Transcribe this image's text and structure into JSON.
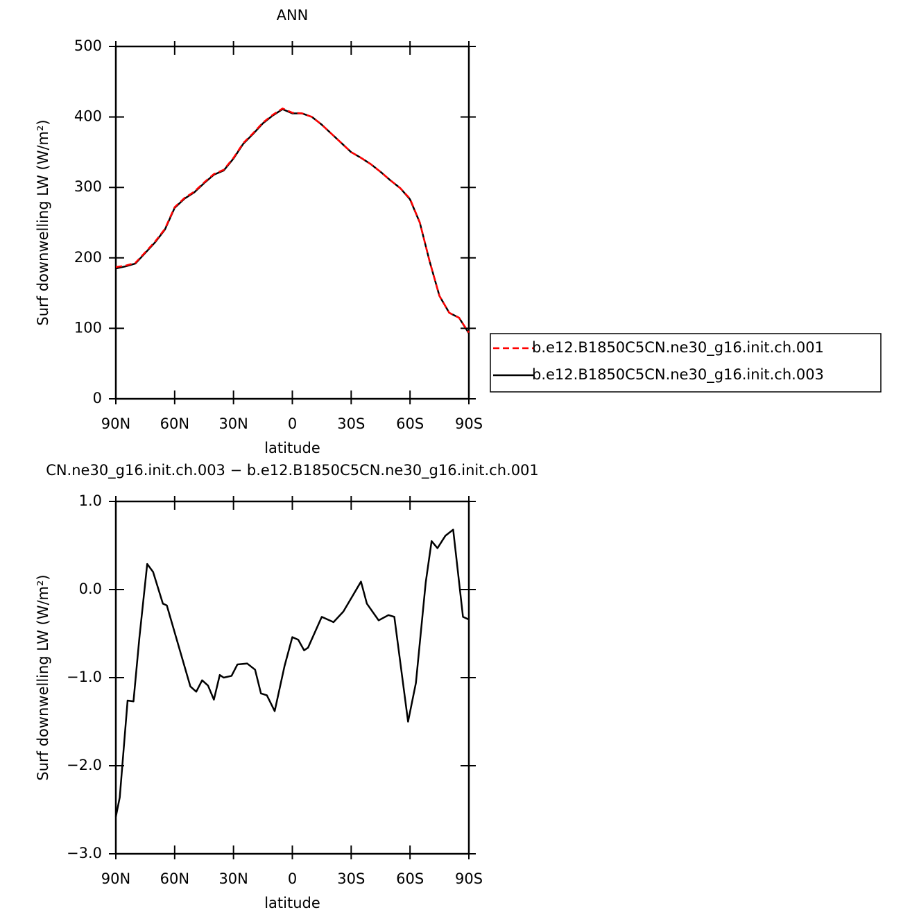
{
  "chart_data": [
    {
      "type": "line",
      "title": "ANN",
      "xlabel": "latitude",
      "ylabel": "Surf downwelling LW (W/m²)",
      "x": [
        90,
        85,
        80,
        75,
        70,
        65,
        60,
        55,
        50,
        45,
        40,
        35,
        30,
        25,
        20,
        15,
        10,
        5,
        0,
        -5,
        -10,
        -15,
        -20,
        -25,
        -30,
        -35,
        -40,
        -45,
        -50,
        -55,
        -60,
        -65,
        -70,
        -75,
        -80,
        -85,
        -90
      ],
      "series": [
        {
          "name": "b.e12.B1850C5CN.ne30_g16.init.ch.001",
          "color": "#ff0000",
          "dashed": true,
          "values": [
            187,
            189,
            193,
            208,
            223,
            241,
            272,
            285,
            294,
            307,
            319,
            325,
            342,
            363,
            377,
            392,
            403,
            412,
            406,
            405,
            400,
            389,
            376,
            363,
            350,
            342,
            333,
            322,
            310,
            299,
            284,
            250,
            195,
            146,
            122,
            115,
            94
          ]
        },
        {
          "name": "b.e12.B1850C5CN.ne30_g16.init.ch.003",
          "color": "#000000",
          "dashed": false,
          "values": [
            185,
            188,
            192,
            207,
            222,
            240,
            271,
            284,
            293,
            306,
            318,
            324,
            341,
            362,
            376,
            391,
            402,
            411,
            405,
            405,
            400,
            389,
            376,
            363,
            350,
            342,
            333,
            322,
            310,
            299,
            283,
            250,
            195,
            146,
            122,
            115,
            93
          ]
        }
      ],
      "xlim": [
        90,
        -90
      ],
      "xticks": [
        {
          "value": 90,
          "label": "90N"
        },
        {
          "value": 60,
          "label": "60N"
        },
        {
          "value": 30,
          "label": "30N"
        },
        0,
        {
          "value": -30,
          "label": "30S"
        },
        {
          "value": -60,
          "label": "60S"
        },
        {
          "value": -90,
          "label": "90S"
        }
      ],
      "ylim": [
        0,
        500
      ],
      "yticks": [
        0,
        100,
        200,
        300,
        400,
        500
      ],
      "legend": "right"
    },
    {
      "type": "line",
      "title": "CN.ne30_g16.init.ch.003 − b.e12.B1850C5CN.ne30_g16.init.ch.001",
      "xlabel": "latitude",
      "ylabel": "Surf downwelling LW (W/m²)",
      "x": [
        90,
        88,
        84,
        81,
        78,
        74,
        71,
        66,
        64,
        55,
        52,
        49,
        46,
        43,
        40,
        37,
        35,
        31,
        28,
        23,
        19,
        16,
        13,
        9,
        4,
        0,
        -3,
        -6,
        -8,
        -15,
        -21,
        -26,
        -35,
        -38,
        -44,
        -49,
        -52,
        -59,
        -63,
        -68,
        -71,
        -74,
        -78,
        -82,
        -87,
        -90
      ],
      "series": [
        {
          "name": null,
          "color": "#000000",
          "dashed": false,
          "values": [
            -2.58,
            -2.36,
            -1.26,
            -1.27,
            -0.55,
            0.29,
            0.2,
            -0.16,
            -0.18,
            -0.87,
            -1.1,
            -1.16,
            -1.03,
            -1.09,
            -1.25,
            -0.97,
            -1.0,
            -0.98,
            -0.85,
            -0.84,
            -0.91,
            -1.18,
            -1.2,
            -1.38,
            -0.87,
            -0.54,
            -0.57,
            -0.69,
            -0.66,
            -0.31,
            -0.37,
            -0.25,
            0.09,
            -0.16,
            -0.35,
            -0.29,
            -0.31,
            -1.5,
            -1.06,
            0.08,
            0.55,
            0.47,
            0.61,
            0.68,
            -0.31,
            -0.34
          ]
        }
      ],
      "xlim": [
        90,
        -90
      ],
      "xticks": [
        {
          "value": 90,
          "label": "90N"
        },
        {
          "value": 60,
          "label": "60N"
        },
        {
          "value": 30,
          "label": "30N"
        },
        0,
        {
          "value": -30,
          "label": "30S"
        },
        {
          "value": -60,
          "label": "60S"
        },
        {
          "value": -90,
          "label": "90S"
        }
      ],
      "ylim": [
        -3,
        1
      ],
      "yticks": [
        {
          "value": -3,
          "label": "−3.0"
        },
        {
          "value": -2,
          "label": "−2.0"
        },
        {
          "value": -1,
          "label": "−1.0"
        },
        {
          "value": 0,
          "label": "0.0"
        },
        {
          "value": 1,
          "label": "1.0"
        }
      ]
    }
  ]
}
